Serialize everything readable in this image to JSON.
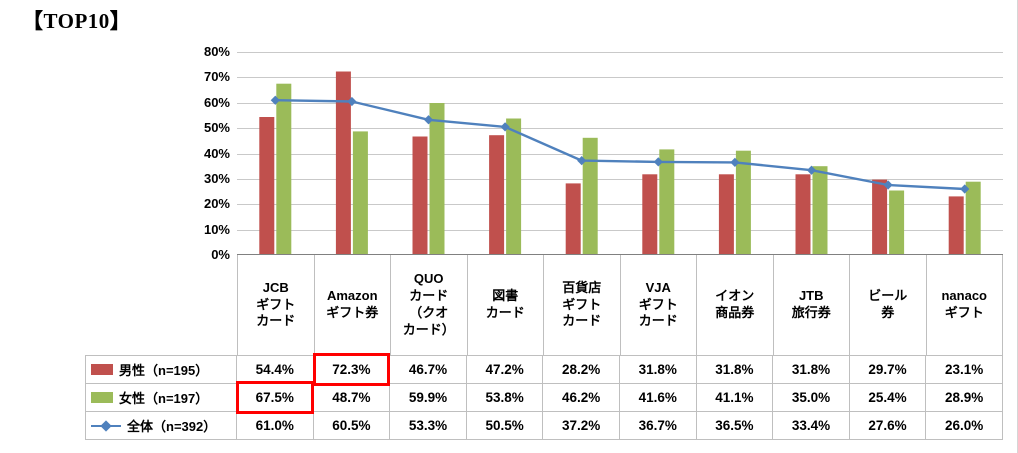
{
  "chart_data": {
    "type": "bar",
    "title": "【TOP10】",
    "categories": [
      "JCB\nギフト\nカード",
      "Amazon\nギフト券",
      "QUO\nカード\n（クオ\nカード）",
      "図書\nカード",
      "百貨店\nギフト\nカード",
      "VJA\nギフト\nカード",
      "イオン\n商品券",
      "JTB\n旅行券",
      "ビール\n券",
      "nanaco\nギフト"
    ],
    "series": [
      {
        "name": "男性（n=195）",
        "type": "bar",
        "color": "#C0504D",
        "values": [
          54.4,
          72.3,
          46.7,
          47.2,
          28.2,
          31.8,
          31.8,
          31.8,
          29.7,
          23.1
        ]
      },
      {
        "name": "女性（n=197）",
        "type": "bar",
        "color": "#9BBB59",
        "values": [
          67.5,
          48.7,
          59.9,
          53.8,
          46.2,
          41.6,
          41.1,
          35.0,
          25.4,
          28.9
        ]
      },
      {
        "name": "全体（n=392）",
        "type": "line",
        "color": "#4F81BD",
        "values": [
          61.0,
          60.5,
          53.3,
          50.5,
          37.2,
          36.7,
          36.5,
          33.4,
          27.6,
          26.0
        ]
      }
    ],
    "ylim": [
      0,
      80
    ],
    "ytick_step": 10,
    "ytick_suffix": "%",
    "value_suffix": "%",
    "grid": true,
    "legend_position": "table-left",
    "highlight_color": "#FF0000",
    "table_highlights": [
      {
        "series_index": 0,
        "category_index": 1
      },
      {
        "series_index": 1,
        "category_index": 0
      }
    ],
    "colors": {
      "gridline": "#C9C9C9",
      "axis_line": "#808080",
      "table_border": "#BFBFBF"
    }
  }
}
